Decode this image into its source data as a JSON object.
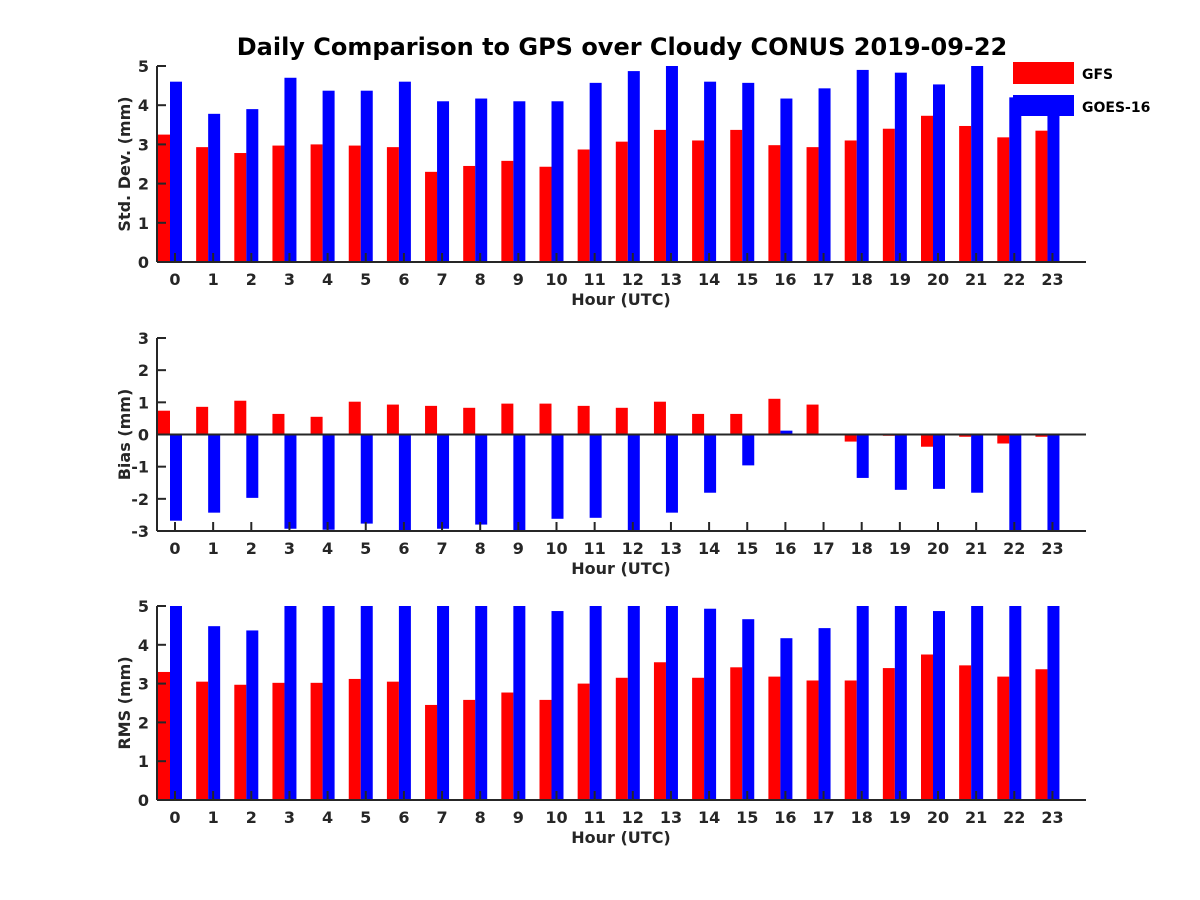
{
  "figure_title": "Daily Comparison to GPS over Cloudy CONUS 2019-09-22",
  "colors": {
    "GFS": "#ff0000",
    "GOES-16": "#0000ff",
    "axis": "#262626"
  },
  "legend": {
    "placement": "top-right",
    "entries": [
      "GFS",
      "GOES-16"
    ]
  },
  "chart_data": [
    {
      "type": "bar",
      "title": "",
      "xlabel": "Hour (UTC)",
      "ylabel": "Std. Dev. (mm)",
      "categories": [
        "0",
        "1",
        "2",
        "3",
        "4",
        "5",
        "6",
        "7",
        "8",
        "9",
        "10",
        "11",
        "12",
        "13",
        "14",
        "15",
        "16",
        "17",
        "18",
        "19",
        "20",
        "21",
        "22",
        "23"
      ],
      "ylim": [
        0,
        5
      ],
      "yticks": [
        "0",
        "1",
        "2",
        "3",
        "4",
        "5"
      ],
      "grid": false,
      "series": [
        {
          "name": "GFS",
          "values": [
            3.25,
            2.93,
            2.78,
            2.97,
            3.0,
            2.97,
            2.93,
            2.3,
            2.45,
            2.58,
            2.43,
            2.87,
            3.07,
            3.37,
            3.1,
            3.37,
            2.98,
            2.93,
            3.1,
            3.4,
            3.73,
            3.47,
            3.18,
            3.35
          ]
        },
        {
          "name": "GOES-16",
          "values": [
            4.6,
            3.78,
            3.9,
            4.7,
            4.37,
            4.37,
            4.6,
            4.1,
            4.17,
            4.1,
            4.1,
            4.57,
            4.87,
            5.0,
            4.6,
            4.57,
            4.17,
            4.43,
            4.9,
            4.83,
            4.53,
            5.0,
            4.2,
            4.1
          ]
        }
      ]
    },
    {
      "type": "bar",
      "title": "",
      "xlabel": "Hour (UTC)",
      "ylabel": "Bias (mm)",
      "categories": [
        "0",
        "1",
        "2",
        "3",
        "4",
        "5",
        "6",
        "7",
        "8",
        "9",
        "10",
        "11",
        "12",
        "13",
        "14",
        "15",
        "16",
        "17",
        "18",
        "19",
        "20",
        "21",
        "22",
        "23"
      ],
      "ylim": [
        -3,
        3
      ],
      "yticks": [
        "-3",
        "-2",
        "-1",
        "0",
        "1",
        "2",
        "3"
      ],
      "grid": false,
      "series": [
        {
          "name": "GFS",
          "values": [
            0.74,
            0.86,
            1.05,
            0.64,
            0.55,
            1.02,
            0.93,
            0.89,
            0.83,
            0.96,
            0.96,
            0.89,
            0.83,
            1.02,
            0.64,
            0.64,
            1.11,
            0.93,
            -0.22,
            -0.04,
            -0.38,
            -0.07,
            -0.28,
            -0.07
          ]
        },
        {
          "name": "GOES-16",
          "values": [
            -2.68,
            -2.43,
            -1.97,
            -2.93,
            -2.96,
            -2.77,
            -3.0,
            -2.93,
            -2.8,
            -3.0,
            -2.62,
            -2.59,
            -3.0,
            -2.43,
            -1.81,
            -0.96,
            0.12,
            -0.03,
            -1.35,
            -1.72,
            -1.69,
            -1.81,
            -3.0,
            -3.0
          ]
        }
      ]
    },
    {
      "type": "bar",
      "title": "",
      "xlabel": "Hour (UTC)",
      "ylabel": "RMS (mm)",
      "categories": [
        "0",
        "1",
        "2",
        "3",
        "4",
        "5",
        "6",
        "7",
        "8",
        "9",
        "10",
        "11",
        "12",
        "13",
        "14",
        "15",
        "16",
        "17",
        "18",
        "19",
        "20",
        "21",
        "22",
        "23"
      ],
      "ylim": [
        0,
        5
      ],
      "yticks": [
        "0",
        "1",
        "2",
        "3",
        "4",
        "5"
      ],
      "grid": false,
      "series": [
        {
          "name": "GFS",
          "values": [
            3.3,
            3.05,
            2.97,
            3.02,
            3.02,
            3.12,
            3.05,
            2.45,
            2.58,
            2.77,
            2.58,
            3.0,
            3.15,
            3.55,
            3.15,
            3.42,
            3.18,
            3.08,
            3.08,
            3.4,
            3.75,
            3.47,
            3.18,
            3.37
          ]
        },
        {
          "name": "GOES-16",
          "values": [
            5.0,
            4.48,
            4.37,
            5.0,
            5.0,
            5.0,
            5.0,
            5.0,
            5.0,
            5.0,
            4.87,
            5.0,
            5.0,
            5.0,
            4.93,
            4.66,
            4.17,
            4.43,
            5.0,
            5.0,
            4.87,
            5.0,
            5.0,
            5.0
          ]
        }
      ]
    }
  ]
}
